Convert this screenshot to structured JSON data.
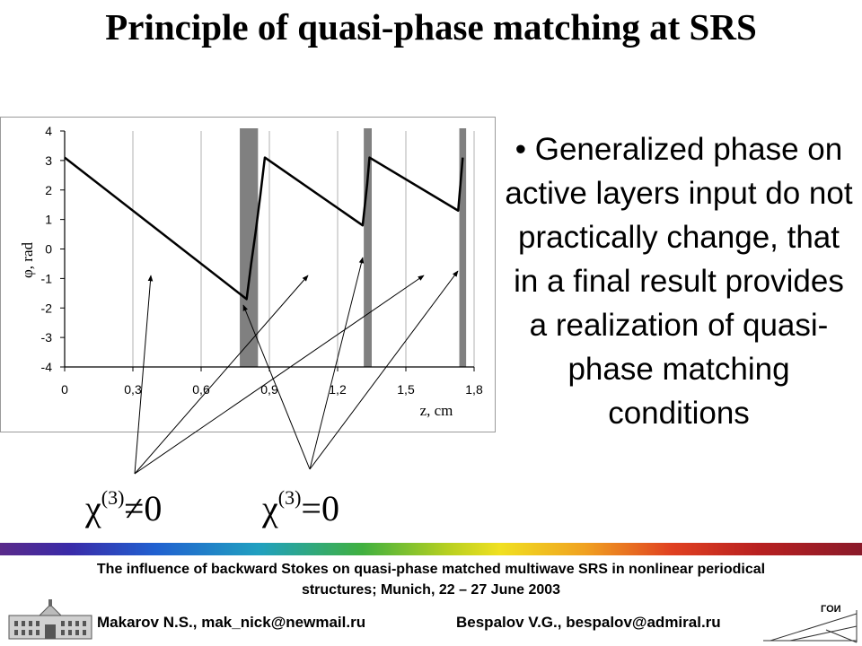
{
  "title": "Principle of quasi-phase matching at SRS",
  "bullet_text": "• Generalized phase on active layers input do not practically change, that in a final result provides a realization of quasi-phase matching conditions",
  "chi_labels": {
    "nonzero": {
      "symbol": "χ",
      "sup": "(3)",
      "rel": "≠0"
    },
    "zero": {
      "symbol": "χ",
      "sup": "(3)",
      "rel": "=0"
    }
  },
  "footer": {
    "line1": "The influence of backward Stokes on quasi-phase matched multiwave SRS in nonlinear periodical",
    "line2": "structures;  Munich, 22 – 27 June 2003",
    "author1": "Makarov N.S., mak_nick@newmail.ru",
    "author2": "Bespalov V.G., bespalov@admiral.ru",
    "logo_text": "ГОИ"
  },
  "chart_data": {
    "type": "line",
    "xlabel": "z, cm",
    "ylabel": "φ, rad",
    "xlim": [
      0,
      1.8
    ],
    "ylim": [
      -4,
      4
    ],
    "x_ticks": [
      "0",
      "0,3",
      "0,6",
      "0,9",
      "1,2",
      "1,5",
      "1,8"
    ],
    "x_tick_values": [
      0,
      0.3,
      0.6,
      0.9,
      1.2,
      1.5,
      1.8
    ],
    "y_ticks": [
      "4",
      "3",
      "2",
      "1",
      "0",
      "-1",
      "-2",
      "-3",
      "-4"
    ],
    "y_tick_values": [
      4,
      3,
      2,
      1,
      0,
      -1,
      -2,
      -3,
      -4
    ],
    "grid": "vertical",
    "series": [
      {
        "x": [
          0,
          0.8,
          0.82,
          0.84,
          0.86,
          0.88,
          1.31,
          1.33,
          1.34,
          1.73,
          1.75
        ],
        "y": [
          3.1,
          -1.7,
          -0.5,
          0.6,
          1.8,
          3.1,
          0.8,
          2.2,
          3.1,
          1.3,
          3.1
        ]
      }
    ],
    "active_layers": [
      {
        "x0": 0.77,
        "x1": 0.85
      },
      {
        "x0": 1.315,
        "x1": 1.35
      },
      {
        "x0": 1.735,
        "x1": 1.765
      }
    ],
    "layer_color": "#808080",
    "line_color": "#000000"
  }
}
